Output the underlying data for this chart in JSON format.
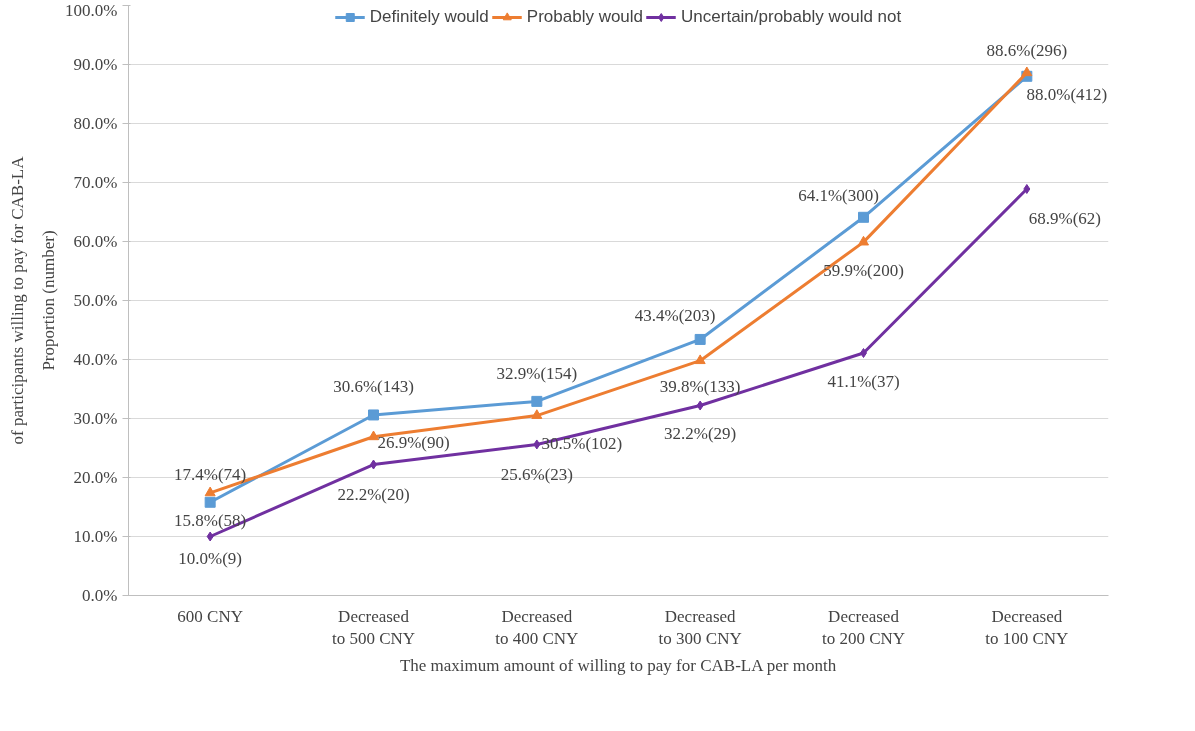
{
  "chart_data": {
    "type": "line",
    "xlabel": "The maximum amount of willing to pay for CAB-LA per month",
    "ylabel": "Proportion (number)\nof participants willing to pay for CAB-LA",
    "categories": [
      "600 CNY",
      "Decreased to 500 CNY",
      "Decreased to 400 CNY",
      "Decreased to 300 CNY",
      "Decreased to 200 CNY",
      "Decreased to 100 CNY"
    ],
    "series": [
      {
        "name": "Definitely would",
        "color": "#5b9bd5",
        "marker": "square",
        "values": [
          15.8,
          30.6,
          32.9,
          43.4,
          64.1,
          88.0
        ],
        "value_labels": [
          "15.8%(58)",
          "30.6%(143)",
          "32.9%(154)",
          "43.4%(203)",
          "64.1%(300)",
          "88.0%(412)"
        ]
      },
      {
        "name": "Probably would",
        "color": "#ed7d31",
        "marker": "triangle",
        "values": [
          17.4,
          26.9,
          30.5,
          39.8,
          59.9,
          88.6
        ],
        "value_labels": [
          "17.4%(74)",
          "26.9%(90)",
          "30.5%(102)",
          "39.8%(133)",
          "59.9%(200)",
          "88.6%(296)"
        ]
      },
      {
        "name": "Uncertain/probably would not",
        "color": "#7030a0",
        "marker": "diamond",
        "values": [
          10.0,
          22.2,
          25.6,
          32.2,
          41.1,
          68.9
        ],
        "value_labels": [
          "10.0%(9)",
          "22.2%(20)",
          "25.6%(23)",
          "32.2%(29)",
          "41.1%(37)",
          "68.9%(62)"
        ]
      }
    ],
    "ylim": [
      0,
      100
    ],
    "yticks": [
      {
        "value": 0,
        "label": "0.0%"
      },
      {
        "value": 10,
        "label": "10.0%"
      },
      {
        "value": 20,
        "label": "20.0%"
      },
      {
        "value": 30,
        "label": "30.0%"
      },
      {
        "value": 40,
        "label": "40.0%"
      },
      {
        "value": 50,
        "label": "50.0%"
      },
      {
        "value": 60,
        "label": "60.0%"
      },
      {
        "value": 70,
        "label": "70.0%"
      },
      {
        "value": 80,
        "label": "80.0%"
      },
      {
        "value": 90,
        "label": "90.0%"
      },
      {
        "value": 100,
        "label": "100.0%"
      }
    ],
    "grid": "y",
    "legend": "top",
    "line_style": "solid"
  }
}
